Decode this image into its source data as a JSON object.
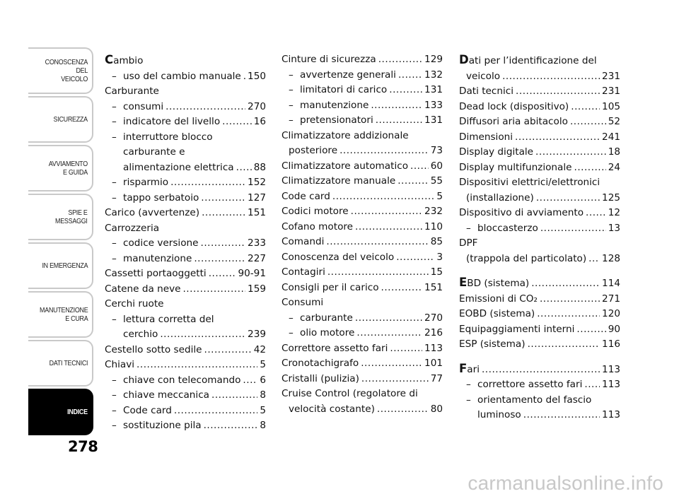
{
  "sidebar": {
    "tabs": [
      {
        "label": "CONOSCENZA\nDEL\nVEICOLO",
        "active": false
      },
      {
        "label": "SICUREZZA",
        "active": false
      },
      {
        "label": "AVVIAMENTO\nE GUIDA",
        "active": false
      },
      {
        "label": "SPIE E\nMESSAGGI",
        "active": false
      },
      {
        "label": "IN EMERGENZA",
        "active": false
      },
      {
        "label": "MANUTENZIONE\nE CURA",
        "active": false
      },
      {
        "label": "DATI TECNICI",
        "active": false
      },
      {
        "label": "INDICE",
        "active": true
      }
    ]
  },
  "page_number": "278",
  "watermark": "carmanualsonline.info",
  "columns": [
    [
      {
        "label": "Cambio",
        "drop": true
      },
      {
        "label": "uso del cambio manuale",
        "page": "150",
        "level": 1
      },
      {
        "label": "Carburante"
      },
      {
        "label": "consumi",
        "page": "270",
        "level": 1
      },
      {
        "label": "indicatore del livello",
        "page": "16",
        "level": 1
      },
      {
        "label": "interruttore blocco",
        "level": 1,
        "cont": [
          "carburante e",
          "alimentazione elettrica"
        ],
        "page": "88"
      },
      {
        "label": "risparmio",
        "page": "152",
        "level": 1
      },
      {
        "label": "tappo serbatoio",
        "page": "127",
        "level": 1
      },
      {
        "label": "Carico (avvertenze)",
        "page": "151"
      },
      {
        "label": "Carrozzeria"
      },
      {
        "label": "codice versione",
        "page": "233",
        "level": 1
      },
      {
        "label": "manutenzione",
        "page": "227",
        "level": 1
      },
      {
        "label": "Cassetti portaoggetti",
        "page": "90-91"
      },
      {
        "label": "Catene da neve",
        "page": "159"
      },
      {
        "label": "Cerchi ruote"
      },
      {
        "label": "lettura corretta del",
        "level": 1,
        "cont": [
          "cerchio"
        ],
        "page": "239"
      },
      {
        "label": "Cestello sotto sedile",
        "page": "42"
      },
      {
        "label": "Chiavi",
        "page": "5"
      },
      {
        "label": "chiave con telecomando",
        "page": "6",
        "level": 1
      },
      {
        "label": "chiave meccanica",
        "page": "8",
        "level": 1
      },
      {
        "label": "Code card",
        "page": "5",
        "level": 1
      },
      {
        "label": "sostituzione pila",
        "page": "8",
        "level": 1
      }
    ],
    [
      {
        "label": "Cinture di sicurezza",
        "page": "129"
      },
      {
        "label": "avvertenze generali",
        "page": "132",
        "level": 1
      },
      {
        "label": "limitatori di carico",
        "page": "131",
        "level": 1
      },
      {
        "label": "manutenzione",
        "page": "133",
        "level": 1
      },
      {
        "label": "pretensionatori",
        "page": "131",
        "level": 1
      },
      {
        "label": "Climatizzatore addizionale",
        "cont": [
          "posteriore"
        ],
        "page": "73"
      },
      {
        "label": "Climatizzatore automatico",
        "page": "60"
      },
      {
        "label": "Climatizzatore manuale",
        "page": "55"
      },
      {
        "label": "Code card",
        "page": "5"
      },
      {
        "label": "Codici motore",
        "page": "232"
      },
      {
        "label": "Cofano motore",
        "page": "110"
      },
      {
        "label": "Comandi",
        "page": "85"
      },
      {
        "label": "Conoscenza del veicolo",
        "page": "3"
      },
      {
        "label": "Contagiri",
        "page": "15"
      },
      {
        "label": "Consigli per il carico",
        "page": "151"
      },
      {
        "label": "Consumi"
      },
      {
        "label": "carburante",
        "page": "270",
        "level": 1
      },
      {
        "label": "olio motore",
        "page": "216",
        "level": 1
      },
      {
        "label": "Correttore assetto fari",
        "page": "113"
      },
      {
        "label": "Cronotachigrafo",
        "page": "101"
      },
      {
        "label": "Cristalli (pulizia)",
        "page": "77"
      },
      {
        "label": "Cruise Control (regolatore di",
        "cont": [
          "velocità costante)"
        ],
        "page": "80"
      }
    ],
    [
      {
        "label": "Dati per l’identificazione del",
        "drop": true,
        "cont": [
          "veicolo"
        ],
        "page": "231"
      },
      {
        "label": "Dati tecnici",
        "page": "231"
      },
      {
        "label": "Dead lock (dispositivo)",
        "page": "105"
      },
      {
        "label": "Diffusori aria abitacolo",
        "page": "52"
      },
      {
        "label": "Dimensioni",
        "page": "241"
      },
      {
        "label": "Display digitale",
        "page": "18"
      },
      {
        "label": "Display multifunzionale",
        "page": "24"
      },
      {
        "label": "Dispositivi elettrici/elettronici",
        "cont": [
          "(installazione)"
        ],
        "page": "125"
      },
      {
        "label": "Dispositivo di avviamento",
        "page": "12"
      },
      {
        "label": "bloccasterzo",
        "page": "13",
        "level": 1
      },
      {
        "label": "DPF",
        "cont": [
          "(trappola del particolato)"
        ],
        "page": "128"
      },
      {
        "gap": true
      },
      {
        "label": "EBD (sistema)",
        "page": "114",
        "drop": true
      },
      {
        "label": "Emissioni di CO₂",
        "page": "271"
      },
      {
        "label": "EOBD (sistema)",
        "page": "120"
      },
      {
        "label": "Equipaggiamenti interni",
        "page": "90"
      },
      {
        "label": "ESP (sistema)",
        "page": "116"
      },
      {
        "gap": true
      },
      {
        "label": "Fari",
        "page": "113",
        "drop": true
      },
      {
        "label": "correttore assetto fari",
        "page": "113",
        "level": 1
      },
      {
        "label": "orientamento del fascio",
        "level": 1,
        "cont": [
          "luminoso"
        ],
        "page": "113"
      }
    ]
  ]
}
